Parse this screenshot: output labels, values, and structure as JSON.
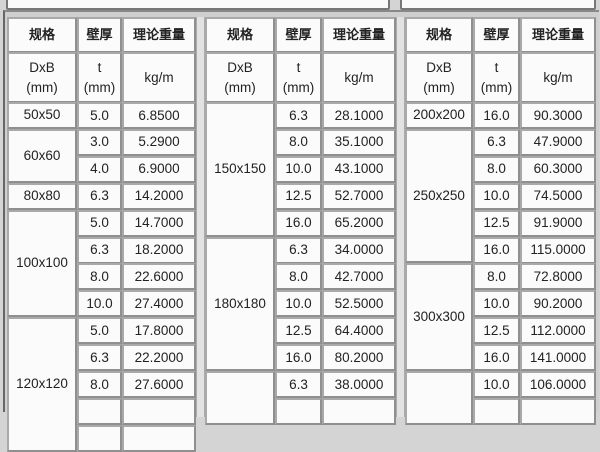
{
  "headers": {
    "spec": "规格",
    "thickness": "壁厚",
    "weight": "理论重量"
  },
  "units": {
    "spec": "DxB\n(mm)",
    "thickness": "t\n(mm)",
    "weight": "kg/m"
  },
  "groups": [
    {
      "blocks": [
        {
          "spec": "50x50",
          "rows": [
            [
              "5.0",
              "6.8500"
            ]
          ]
        },
        {
          "spec": "60x60",
          "rows": [
            [
              "3.0",
              "5.2900"
            ],
            [
              "4.0",
              "6.9000"
            ]
          ]
        },
        {
          "spec": "80x80",
          "rows": [
            [
              "6.3",
              "14.2000"
            ]
          ]
        },
        {
          "spec": "100x100",
          "rows": [
            [
              "5.0",
              "14.7000"
            ],
            [
              "6.3",
              "18.2000"
            ],
            [
              "8.0",
              "22.6000"
            ],
            [
              "10.0",
              "27.4000"
            ]
          ]
        },
        {
          "spec": "120x120",
          "rows": [
            [
              "5.0",
              "17.8000"
            ],
            [
              "6.3",
              "22.2000"
            ],
            [
              "8.0",
              "27.6000"
            ],
            [
              "",
              ""
            ],
            [
              "",
              ""
            ]
          ]
        }
      ]
    },
    {
      "blocks": [
        {
          "spec": "150x150",
          "rows": [
            [
              "6.3",
              "28.1000"
            ],
            [
              "8.0",
              "35.1000"
            ],
            [
              "10.0",
              "43.1000"
            ],
            [
              "12.5",
              "52.7000"
            ],
            [
              "16.0",
              "65.2000"
            ]
          ]
        },
        {
          "spec": "180x180",
          "rows": [
            [
              "6.3",
              "34.0000"
            ],
            [
              "8.0",
              "42.7000"
            ],
            [
              "10.0",
              "52.5000"
            ],
            [
              "12.5",
              "64.4000"
            ],
            [
              "16.0",
              "80.2000"
            ]
          ]
        },
        {
          "spec": "",
          "rows": [
            [
              "6.3",
              "38.0000"
            ],
            [
              "",
              ""
            ]
          ]
        }
      ]
    },
    {
      "blocks": [
        {
          "spec": "200x200",
          "rows": [
            [
              "16.0",
              "90.3000"
            ]
          ]
        },
        {
          "spec": "250x250",
          "rows": [
            [
              "6.3",
              "47.9000"
            ],
            [
              "8.0",
              "60.3000"
            ],
            [
              "10.0",
              "74.5000"
            ],
            [
              "12.5",
              "91.9000"
            ],
            [
              "16.0",
              "115.0000"
            ]
          ]
        },
        {
          "spec": "300x300",
          "rows": [
            [
              "8.0",
              "72.8000"
            ],
            [
              "10.0",
              "90.2000"
            ],
            [
              "12.5",
              "112.0000"
            ],
            [
              "16.0",
              "141.0000"
            ]
          ]
        },
        {
          "spec": "",
          "rows": [
            [
              "10.0",
              "106.0000"
            ],
            [
              "",
              ""
            ]
          ]
        }
      ]
    }
  ]
}
